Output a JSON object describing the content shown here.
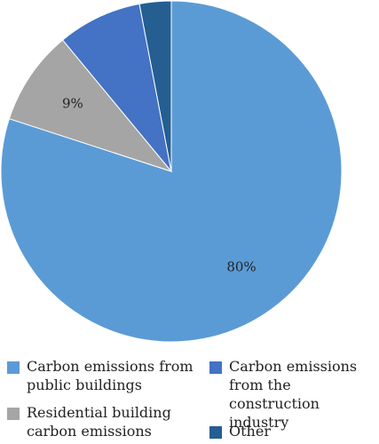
{
  "chart_data": {
    "type": "pie",
    "title": "",
    "slices": [
      {
        "name": "Carbon emissions from public buildings",
        "value": 80,
        "label": "80%",
        "color": "#5b9bd5"
      },
      {
        "name": "Residential building carbon emissions",
        "value": 9,
        "label": "9%",
        "color": "#a5a5a5"
      },
      {
        "name": "Carbon emissions from the construction industry",
        "value": 8,
        "label": "",
        "color": "#4472c4"
      },
      {
        "name": "Other",
        "value": 3,
        "label": "",
        "color": "#255e91"
      }
    ],
    "start_angle_deg": 0,
    "direction": "clockwise",
    "legend_position": "bottom"
  }
}
